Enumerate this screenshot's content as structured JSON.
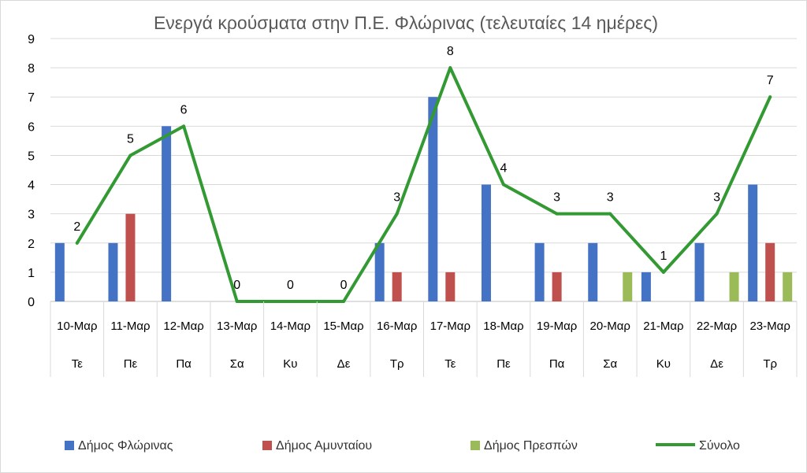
{
  "chart_data": {
    "type": "bar",
    "title": "Ενεργά κρούσματα στην Π.Ε. Φλώρινας (τελευταίες 14 ημέρες)",
    "xlabel": "",
    "ylabel": "",
    "ylim": [
      0,
      9
    ],
    "yticks": [
      0,
      1,
      2,
      3,
      4,
      5,
      6,
      7,
      8,
      9
    ],
    "grid": true,
    "legend_position": "bottom",
    "categories": [
      "10-Μαρ",
      "11-Μαρ",
      "12-Μαρ",
      "13-Μαρ",
      "14-Μαρ",
      "15-Μαρ",
      "16-Μαρ",
      "17-Μαρ",
      "18-Μαρ",
      "19-Μαρ",
      "20-Μαρ",
      "21-Μαρ",
      "22-Μαρ",
      "23-Μαρ"
    ],
    "day_labels": [
      "Τε",
      "Πε",
      "Πα",
      "Σα",
      "Κυ",
      "Δε",
      "Τρ",
      "Τε",
      "Πε",
      "Πα",
      "Σα",
      "Κυ",
      "Δε",
      "Τρ"
    ],
    "series": [
      {
        "name": "Δήμος Φλώρινας",
        "type": "bar",
        "color": "#4472C4",
        "values": [
          2,
          2,
          6,
          0,
          0,
          0,
          2,
          7,
          4,
          2,
          2,
          1,
          2,
          4
        ]
      },
      {
        "name": "Δήμος Αμυνταίου",
        "type": "bar",
        "color": "#C0504D",
        "values": [
          0,
          3,
          0,
          0,
          0,
          0,
          1,
          1,
          0,
          1,
          0,
          0,
          0,
          2
        ]
      },
      {
        "name": "Δήμος Πρεσπών",
        "type": "bar",
        "color": "#9BBB59",
        "values": [
          0,
          0,
          0,
          0,
          0,
          0,
          0,
          0,
          0,
          0,
          1,
          0,
          1,
          1
        ]
      },
      {
        "name": "Σύνολο",
        "type": "line",
        "color": "#339933",
        "values": [
          2,
          5,
          6,
          0,
          0,
          0,
          3,
          8,
          4,
          3,
          3,
          1,
          3,
          7
        ]
      }
    ]
  }
}
